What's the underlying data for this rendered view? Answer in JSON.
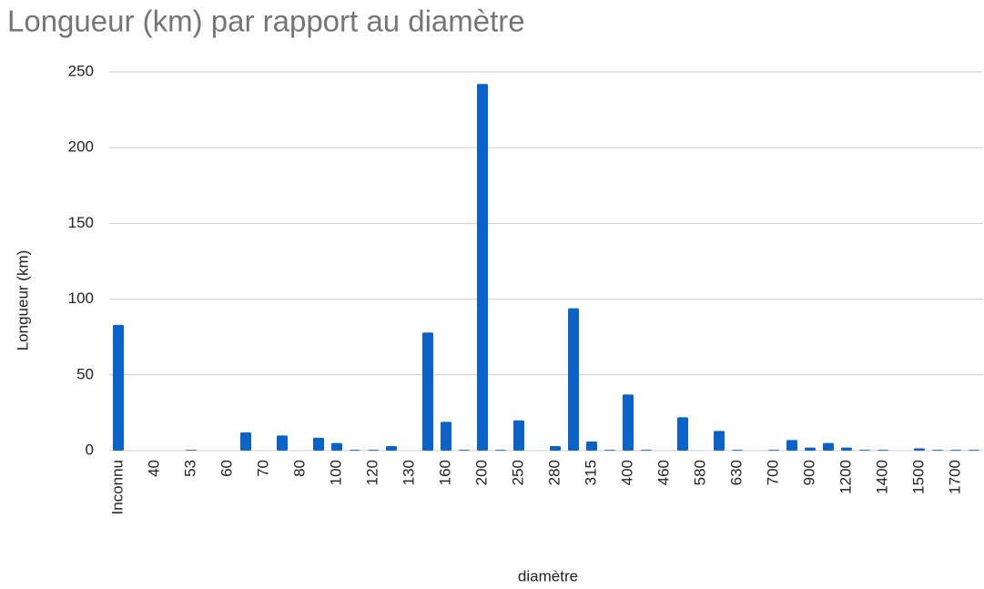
{
  "chart_data": {
    "type": "bar",
    "title": "Longueur (km) par rapport au diamètre",
    "x_label": "diamètre",
    "y_label": "Longueur (km)",
    "categories": [
      "Inconnu",
      null,
      "40",
      null,
      "53",
      null,
      "60",
      null,
      "70",
      null,
      "80",
      null,
      "100",
      null,
      "120",
      null,
      "130",
      null,
      "160",
      null,
      "200",
      null,
      "250",
      null,
      "280",
      null,
      "315",
      null,
      "400",
      null,
      "460",
      null,
      "580",
      null,
      "630",
      null,
      "700",
      null,
      "900",
      null,
      "1200",
      null,
      "1400",
      null,
      "1500",
      null,
      "1700",
      null
    ],
    "values": [
      83,
      0,
      0,
      0,
      0.5,
      0,
      0,
      12,
      0,
      10,
      0,
      8.5,
      5,
      0.5,
      0.5,
      3,
      0,
      78,
      19,
      0.5,
      242,
      0.5,
      20,
      0,
      3,
      94,
      6,
      0.5,
      37,
      0.5,
      0,
      22,
      0,
      13,
      0.5,
      0,
      0.5,
      7,
      2,
      5,
      2,
      0.5,
      0.5,
      0,
      1.5,
      0.5,
      0.5,
      0.5
    ],
    "color": "#0b63c8",
    "ylim": [
      0,
      250
    ],
    "yticks": [
      0,
      50,
      100,
      150,
      200,
      250
    ],
    "grid": true
  }
}
